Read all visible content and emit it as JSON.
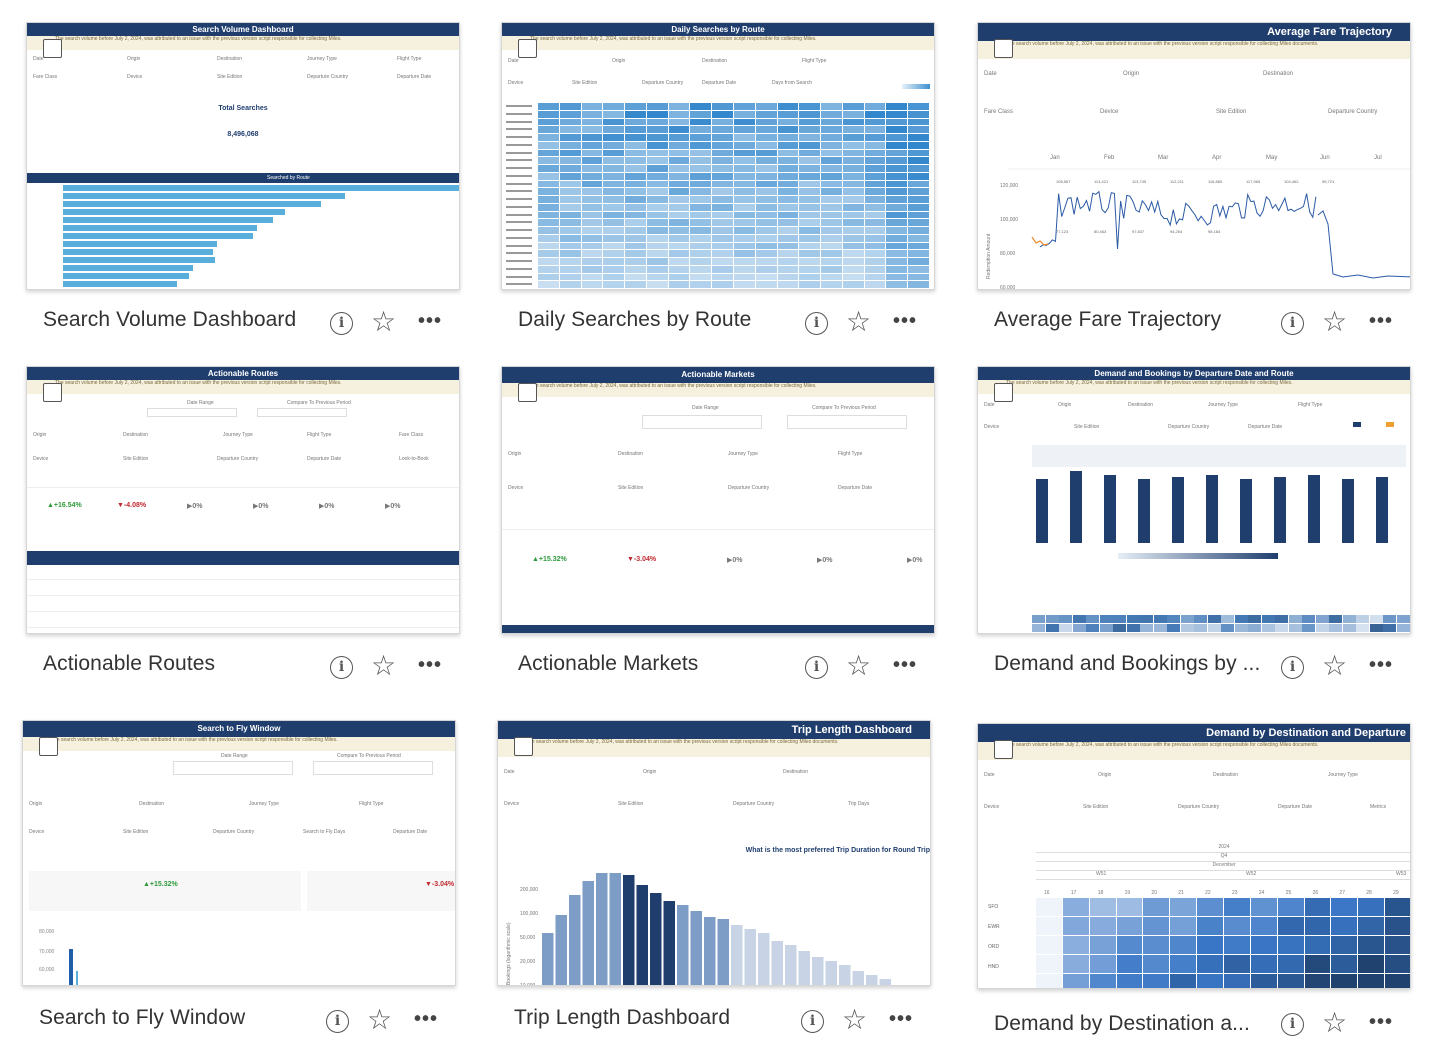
{
  "cards": [
    {
      "title": "Search Volume Dashboard",
      "header": "Search Volume Dashboard",
      "total_label": "Total Searches",
      "total_value": "8,496,068",
      "bar_header": "Searched by Route"
    },
    {
      "title": "Daily Searches by Route",
      "header": "Daily Searches by Route"
    },
    {
      "title": "Average Fare Trajectory",
      "header": "Average Fare Trajectory",
      "months": [
        "Jan",
        "Feb",
        "Mar",
        "Apr",
        "May",
        "Jun",
        "Jul"
      ],
      "y_ticks": [
        "120,000",
        "100,000",
        "80,000",
        "60,000"
      ],
      "peaks": [
        "108,567",
        "113,421",
        "113,745",
        "112,211",
        "116,865",
        "117,965",
        "104,462",
        "95,721",
        "77,123",
        "80,463",
        "97,837",
        "94,254",
        "98,184"
      ],
      "y_label": "Redemption Amount"
    },
    {
      "title": "Actionable Routes",
      "header": "Actionable Routes",
      "kpis": [
        "▲+16.54%",
        "▼-4.08%",
        "▶0%",
        "▶0%",
        "▶0%",
        "▶0%"
      ]
    },
    {
      "title": "Actionable Markets",
      "header": "Actionable Markets",
      "kpis": [
        "▲+15.32%",
        "▼-3.04%",
        "▶0%",
        "▶0%",
        "▶0%"
      ]
    },
    {
      "title": "Demand and Bookings by ...",
      "header": "Demand and Bookings by Departure Date and Route"
    },
    {
      "title": "Search to Fly Window",
      "header": "Search to Fly Window",
      "kpis": [
        "▲+15.32%",
        "▼-3.04%"
      ],
      "y_ticks": [
        "80,000",
        "70,000",
        "60,000"
      ]
    },
    {
      "title": "Trip Length Dashboard",
      "header": "Trip Length Dashboard",
      "question": "What is the most preferred Trip Duration for Round Trip",
      "y_ticks": [
        "200,000",
        "100,000",
        "50,000",
        "20,000",
        "10,000"
      ],
      "y_label": "Bookings (logarithmic scale)"
    },
    {
      "title": "Demand by Destination a...",
      "header": "Demand by Destination and Departure",
      "rows": [
        "SFO",
        "EWR",
        "ORD",
        "HND"
      ],
      "year": "2024",
      "quarter": "Q4",
      "month": "December",
      "weeks": [
        "W51",
        "W52",
        "W53"
      ],
      "days": [
        "16",
        "17",
        "18",
        "19",
        "20",
        "21",
        "22",
        "23",
        "24",
        "25",
        "26",
        "27",
        "28",
        "29"
      ]
    }
  ],
  "icons": {
    "info": "i",
    "star": "☆",
    "more": "•••"
  },
  "colors": {
    "header": "#1f3e6e",
    "bar": "#5aaedb",
    "dark_bar": "#1f3e6e",
    "line": "#2b5aa6"
  }
}
